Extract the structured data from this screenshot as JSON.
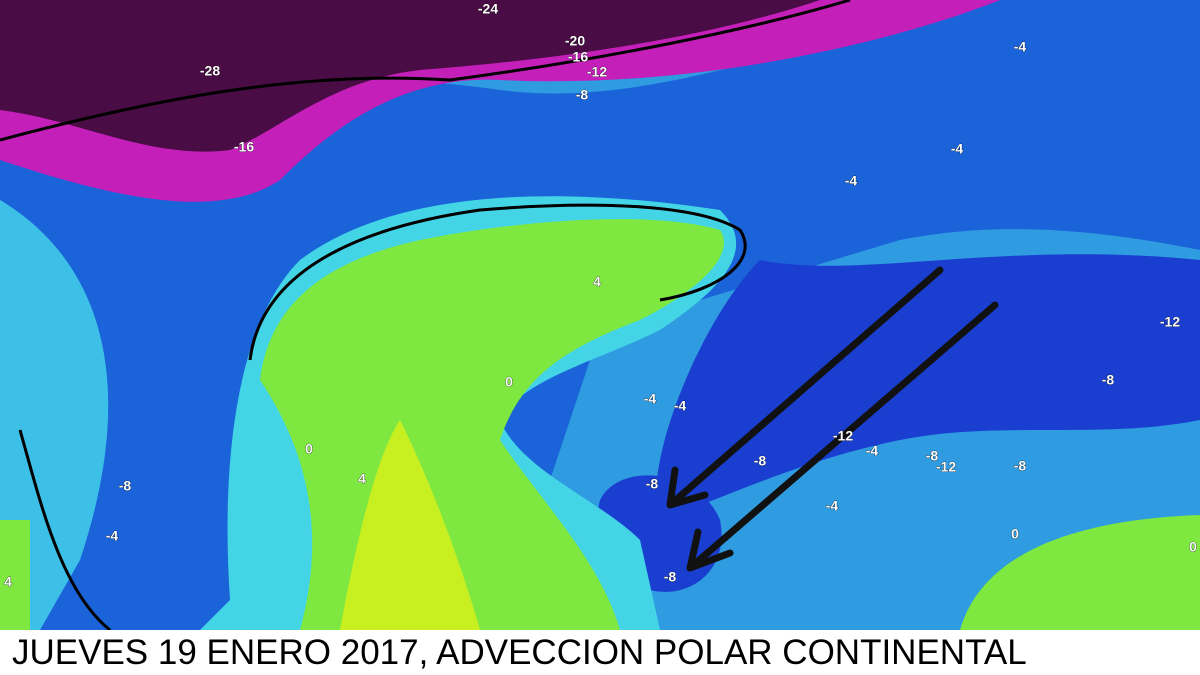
{
  "caption": "JUEVES 19 ENERO 2017, ADVECCION POLAR CONTINENTAL",
  "contour_labels": [
    -24,
    -28,
    -20,
    -16,
    -12,
    -8,
    -16,
    -4,
    -4,
    -4,
    4,
    -12,
    0,
    -8,
    -4,
    -4,
    -12,
    -4,
    -8,
    -8,
    -12,
    -8,
    0,
    4,
    -8,
    -8,
    -4,
    -4,
    0,
    -8,
    4,
    0
  ]
}
